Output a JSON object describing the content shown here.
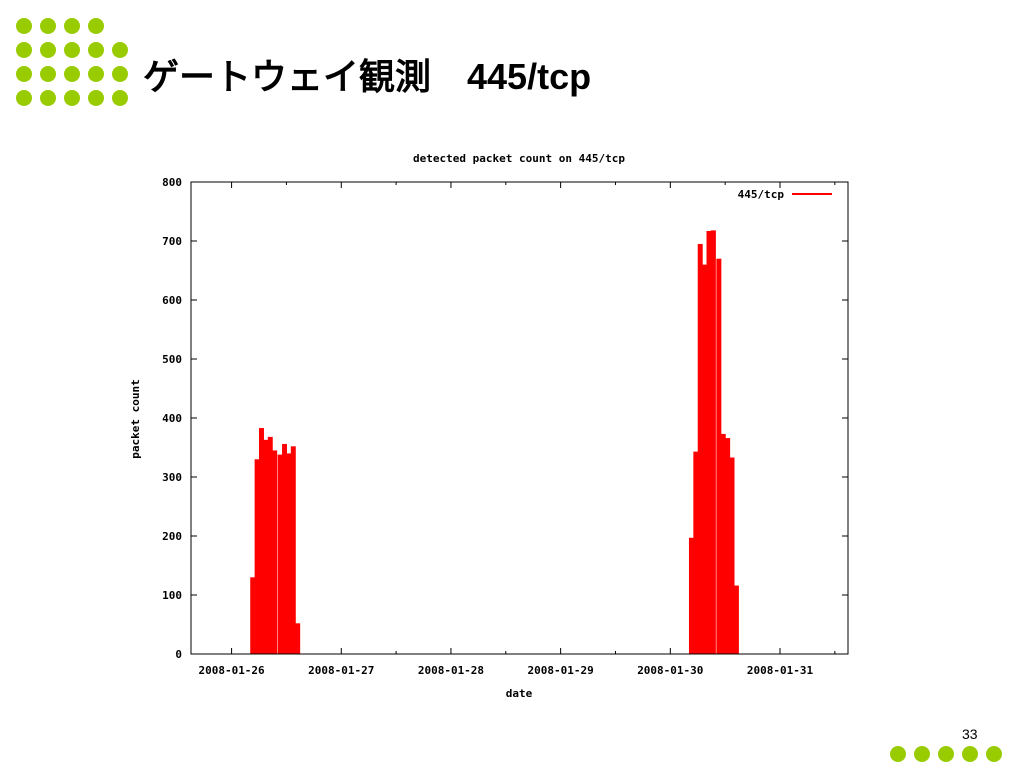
{
  "slide": {
    "title_jp": "ゲートウェイ観測",
    "title_port": "445/tcp",
    "page_number": "33",
    "accent_color": "#99cc00"
  },
  "chart_data": {
    "type": "bar",
    "title": "detected packet count on 445/tcp",
    "xlabel": "date",
    "ylabel": "packet count",
    "ylim": [
      0,
      800
    ],
    "yticks": [
      "0",
      "100",
      "200",
      "300",
      "400",
      "500",
      "600",
      "700",
      "800"
    ],
    "xticks": [
      "2008-01-26",
      "2008-01-27",
      "2008-01-28",
      "2008-01-29",
      "2008-01-30",
      "2008-01-31"
    ],
    "xlim_days": [
      -0.37,
      5.62
    ],
    "grid": false,
    "legend_position": "top-right",
    "series": [
      {
        "name": "445/tcp",
        "color": "#ff0000",
        "bin_hours": 1,
        "points": [
          {
            "day": 0.17,
            "value": 130
          },
          {
            "day": 0.21,
            "value": 330
          },
          {
            "day": 0.25,
            "value": 383
          },
          {
            "day": 0.29,
            "value": 363
          },
          {
            "day": 0.33,
            "value": 368
          },
          {
            "day": 0.37,
            "value": 345
          },
          {
            "day": 0.42,
            "value": 338
          },
          {
            "day": 0.46,
            "value": 356
          },
          {
            "day": 0.5,
            "value": 340
          },
          {
            "day": 0.54,
            "value": 352
          },
          {
            "day": 0.58,
            "value": 52
          },
          {
            "day": 4.17,
            "value": 197
          },
          {
            "day": 4.21,
            "value": 343
          },
          {
            "day": 4.25,
            "value": 695
          },
          {
            "day": 4.29,
            "value": 660
          },
          {
            "day": 4.33,
            "value": 717
          },
          {
            "day": 4.37,
            "value": 718
          },
          {
            "day": 4.42,
            "value": 670
          },
          {
            "day": 4.46,
            "value": 373
          },
          {
            "day": 4.5,
            "value": 366
          },
          {
            "day": 4.54,
            "value": 333
          },
          {
            "day": 4.58,
            "value": 116
          }
        ]
      }
    ]
  }
}
